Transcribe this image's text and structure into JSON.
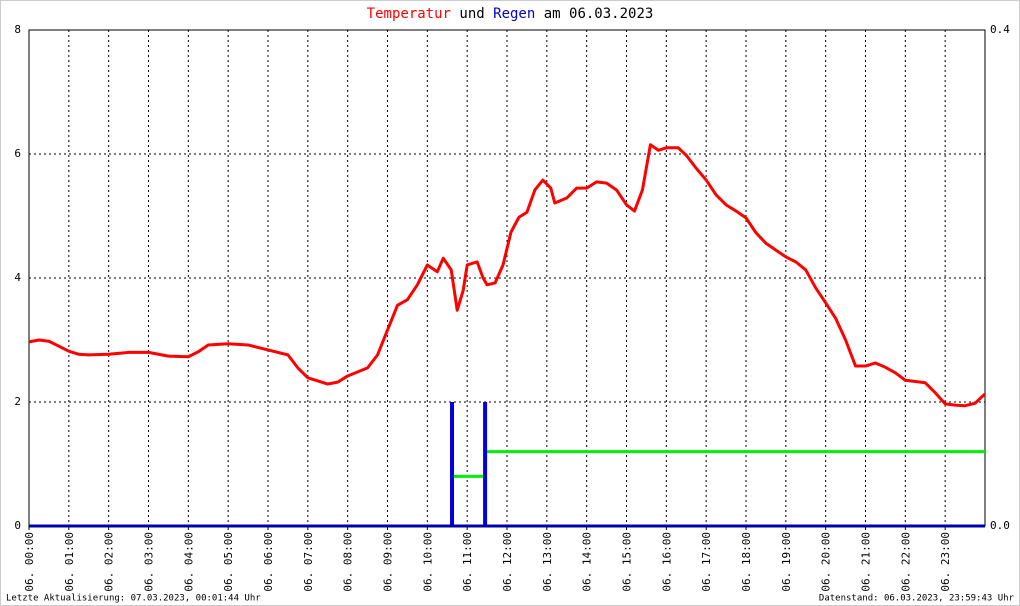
{
  "chart_data": {
    "type": "line",
    "title_parts": [
      {
        "text": "Temperatur",
        "color": "#ff0000"
      },
      {
        "text": "und",
        "color": "#000000"
      },
      {
        "text": "Regen",
        "color": "#0000cc"
      },
      {
        "text": "am 06.03.2023",
        "color": "#000000"
      }
    ],
    "footer_left": "Letzte Aktualisierung: 07.03.2023, 00:01:44 Uhr",
    "footer_right": "Datenstand: 06.03.2023, 23:59:43 Uhr",
    "xlim": [
      0,
      24
    ],
    "xticks": [
      {
        "value": 0,
        "label": "06. 00:00"
      },
      {
        "value": 1,
        "label": "06. 01:00"
      },
      {
        "value": 2,
        "label": "06. 02:00"
      },
      {
        "value": 3,
        "label": "06. 03:00"
      },
      {
        "value": 4,
        "label": "06. 04:00"
      },
      {
        "value": 5,
        "label": "06. 05:00"
      },
      {
        "value": 6,
        "label": "06. 06:00"
      },
      {
        "value": 7,
        "label": "06. 07:00"
      },
      {
        "value": 8,
        "label": "06. 08:00"
      },
      {
        "value": 9,
        "label": "06. 09:00"
      },
      {
        "value": 10,
        "label": "06. 10:00"
      },
      {
        "value": 11,
        "label": "06. 11:00"
      },
      {
        "value": 12,
        "label": "06. 12:00"
      },
      {
        "value": 13,
        "label": "06. 13:00"
      },
      {
        "value": 14,
        "label": "06. 14:00"
      },
      {
        "value": 15,
        "label": "06. 15:00"
      },
      {
        "value": 16,
        "label": "06. 16:00"
      },
      {
        "value": 17,
        "label": "06. 17:00"
      },
      {
        "value": 18,
        "label": "06. 18:00"
      },
      {
        "value": 19,
        "label": "06. 19:00"
      },
      {
        "value": 20,
        "label": "06. 20:00"
      },
      {
        "value": 21,
        "label": "06. 21:00"
      },
      {
        "value": 22,
        "label": "06. 22:00"
      },
      {
        "value": 23,
        "label": "06. 23:00"
      }
    ],
    "ylim": [
      0,
      8
    ],
    "yticks": [
      0,
      2,
      4,
      6,
      8
    ],
    "y2lim": [
      0,
      0.4
    ],
    "y2ticks": [
      {
        "value": 0,
        "label": "0.0"
      },
      0.4
    ],
    "grid": true,
    "series": [
      {
        "kind": "line",
        "color": "#ff0000",
        "x": [
          0,
          0.25,
          0.5,
          0.75,
          1,
          1.25,
          1.5,
          2,
          2.5,
          3,
          3.5,
          4,
          4.25,
          4.5,
          5,
          5.5,
          6,
          6.5,
          6.75,
          7,
          7.5,
          7.75,
          8,
          8.5,
          8.75,
          9,
          9.25,
          9.5,
          9.75,
          10,
          10.25,
          10.4,
          10.6,
          10.75,
          10.9,
          11,
          11.25,
          11.4,
          11.5,
          11.7,
          11.9,
          12.1,
          12.3,
          12.5,
          12.7,
          12.9,
          13.1,
          13.2,
          13.5,
          13.75,
          14,
          14.25,
          14.5,
          14.75,
          15,
          15.2,
          15.4,
          15.6,
          15.8,
          16,
          16.3,
          16.5,
          16.75,
          17,
          17.25,
          17.5,
          17.75,
          18,
          18.25,
          18.5,
          18.75,
          19,
          19.25,
          19.5,
          19.75,
          20,
          20.25,
          20.5,
          20.75,
          21,
          21.25,
          21.5,
          21.75,
          22,
          22.5,
          22.75,
          23,
          23.25,
          23.5,
          23.75,
          24
        ],
        "values": [
          2.97,
          3.0,
          2.98,
          2.9,
          2.82,
          2.77,
          2.76,
          2.77,
          2.8,
          2.8,
          2.74,
          2.73,
          2.81,
          2.92,
          2.94,
          2.92,
          2.84,
          2.76,
          2.55,
          2.39,
          2.29,
          2.32,
          2.42,
          2.55,
          2.76,
          3.16,
          3.56,
          3.65,
          3.89,
          4.21,
          4.1,
          4.32,
          4.13,
          3.48,
          3.8,
          4.21,
          4.26,
          4.0,
          3.89,
          3.92,
          4.21,
          4.74,
          4.98,
          5.06,
          5.42,
          5.58,
          5.45,
          5.21,
          5.29,
          5.45,
          5.45,
          5.55,
          5.53,
          5.42,
          5.18,
          5.08,
          5.42,
          6.15,
          6.06,
          6.1,
          6.1,
          5.98,
          5.77,
          5.58,
          5.34,
          5.18,
          5.08,
          4.97,
          4.73,
          4.56,
          4.45,
          4.34,
          4.26,
          4.13,
          3.84,
          3.6,
          3.35,
          3.0,
          2.58,
          2.58,
          2.63,
          2.56,
          2.47,
          2.35,
          2.31,
          2.15,
          1.97,
          1.95,
          1.94,
          1.98,
          2.13
        ]
      },
      {
        "kind": "bar",
        "axis": "y2",
        "color": "#0000dd",
        "x": [
          10.62,
          11.45
        ],
        "values": [
          0.1,
          0.1
        ]
      },
      {
        "kind": "step",
        "axis": "y2",
        "color": "#00ee00",
        "x": [
          10.65,
          11.45,
          11.45,
          24
        ],
        "values": [
          0.04,
          0.04,
          0.06,
          0.06
        ]
      }
    ]
  }
}
